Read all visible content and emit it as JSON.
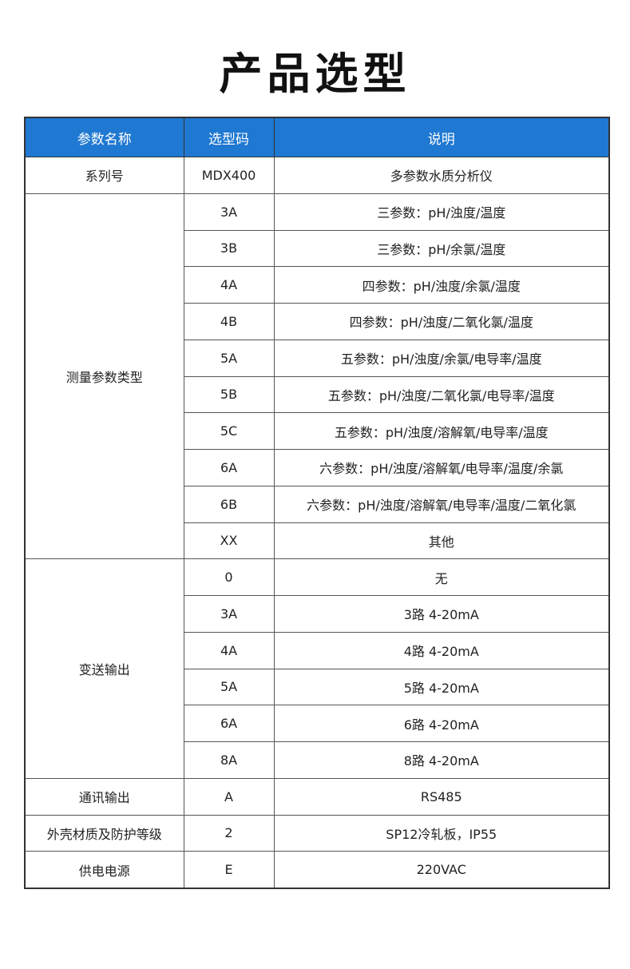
{
  "title": "产品选型",
  "colors": {
    "header_bg": "#1f78d1",
    "header_text": "#ffffff"
  },
  "table": {
    "headers": [
      "参数名称",
      "选型码",
      "说明"
    ],
    "groups": [
      {
        "name": "系列号",
        "rows": [
          {
            "code": "MDX400",
            "desc": "多参数水质分析仪"
          }
        ]
      },
      {
        "name": "测量参数类型",
        "rows": [
          {
            "code": "3A",
            "desc": "三参数：pH/浊度/温度"
          },
          {
            "code": "3B",
            "desc": "三参数：pH/余氯/温度"
          },
          {
            "code": "4A",
            "desc": "四参数：pH/浊度/余氯/温度"
          },
          {
            "code": "4B",
            "desc": "四参数：pH/浊度/二氧化氯/温度"
          },
          {
            "code": "5A",
            "desc": "五参数：pH/浊度/余氯/电导率/温度"
          },
          {
            "code": "5B",
            "desc": "五参数：pH/浊度/二氧化氯/电导率/温度"
          },
          {
            "code": "5C",
            "desc": "五参数：pH/浊度/溶解氧/电导率/温度"
          },
          {
            "code": "6A",
            "desc": "六参数：pH/浊度/溶解氧/电导率/温度/余氯"
          },
          {
            "code": "6B",
            "desc": "六参数：pH/浊度/溶解氧/电导率/温度/二氧化氯"
          },
          {
            "code": "XX",
            "desc": "其他"
          }
        ]
      },
      {
        "name": "变送输出",
        "rows": [
          {
            "code": "0",
            "desc": "无"
          },
          {
            "code": "3A",
            "desc": "3路 4-20mA"
          },
          {
            "code": "4A",
            "desc": "4路 4-20mA"
          },
          {
            "code": "5A",
            "desc": "5路 4-20mA"
          },
          {
            "code": "6A",
            "desc": "6路 4-20mA"
          },
          {
            "code": "8A",
            "desc": "8路 4-20mA"
          }
        ]
      },
      {
        "name": "通讯输出",
        "rows": [
          {
            "code": "A",
            "desc": "RS485"
          }
        ]
      },
      {
        "name": "外壳材质及防护等级",
        "rows": [
          {
            "code": "2",
            "desc": "SP12冷轧板，IP55"
          }
        ]
      },
      {
        "name": "供电电源",
        "rows": [
          {
            "code": "E",
            "desc": "220VAC"
          }
        ]
      }
    ]
  }
}
